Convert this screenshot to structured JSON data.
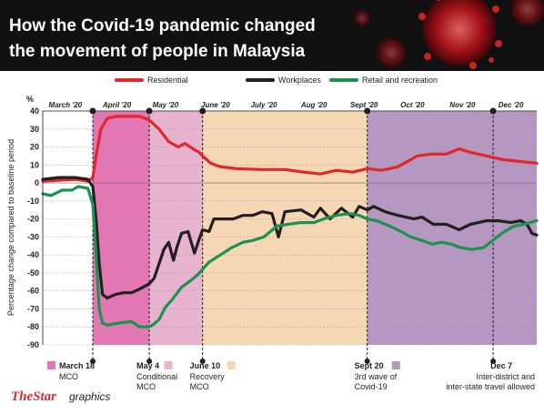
{
  "title_line1": "How the Covid-19 pandemic changed",
  "title_line2": "the movement of people in Malaysia",
  "credit_brand": "TheStar",
  "credit_suffix": "graphics",
  "chart_data": {
    "type": "line",
    "ylabel": "Percentage change compared to baseline period",
    "y_unit": "%",
    "ylim": [
      -90,
      40
    ],
    "yticks": [
      40,
      30,
      20,
      10,
      0,
      -10,
      -20,
      -30,
      -40,
      -50,
      -60,
      -70,
      -80,
      -90
    ],
    "xlim": [
      0,
      306
    ],
    "month_ticks": [
      {
        "label": "March '20",
        "x": 14
      },
      {
        "label": "April '20",
        "x": 46
      },
      {
        "label": "May '20",
        "x": 76
      },
      {
        "label": "June '20",
        "x": 107
      },
      {
        "label": "July '20",
        "x": 137
      },
      {
        "label": "Aug '20",
        "x": 168
      },
      {
        "label": "Sept '20",
        "x": 199
      },
      {
        "label": "Oct '20",
        "x": 229
      },
      {
        "label": "Nov '20",
        "x": 260
      },
      {
        "label": "Dec '20",
        "x": 290
      }
    ],
    "phases": [
      {
        "label": "March 18",
        "sublabel": "MCO",
        "start": 31,
        "end": 66,
        "color": "#e377b3"
      },
      {
        "label": "May 4",
        "sublabel": "Conditional MCO",
        "start": 66,
        "end": 99,
        "color": "#e8b3cf"
      },
      {
        "label": "June 10",
        "sublabel": "Recovery MCO",
        "start": 99,
        "end": 201,
        "color": "#f6d7b3"
      },
      {
        "label": "Sept 20",
        "sublabel": "3rd wave of Covid-19",
        "start": 201,
        "end": 306,
        "color": "#b597c1"
      }
    ],
    "event_lines": [
      {
        "label": "March 18",
        "x": 31
      },
      {
        "label": "May 4",
        "x": 66
      },
      {
        "label": "June 10",
        "x": 99
      },
      {
        "label": "Sept 20",
        "x": 201
      },
      {
        "label": "Dec 7",
        "x": 279
      }
    ],
    "annotations": [
      {
        "label": "Dec 7",
        "sublabel": "Inter-district and inter-state travel allowed",
        "x": 279
      }
    ],
    "series": [
      {
        "name": "Residential",
        "color": "#e1272c",
        "points": [
          [
            0,
            1
          ],
          [
            10,
            1.5
          ],
          [
            20,
            2
          ],
          [
            28,
            1
          ],
          [
            31,
            3
          ],
          [
            33,
            15
          ],
          [
            36,
            30
          ],
          [
            40,
            36
          ],
          [
            46,
            37
          ],
          [
            55,
            37
          ],
          [
            60,
            37
          ],
          [
            66,
            35
          ],
          [
            72,
            30
          ],
          [
            78,
            23
          ],
          [
            84,
            20
          ],
          [
            88,
            22
          ],
          [
            93,
            19
          ],
          [
            97,
            17
          ],
          [
            99,
            15
          ],
          [
            104,
            11
          ],
          [
            110,
            9
          ],
          [
            120,
            8
          ],
          [
            135,
            7.5
          ],
          [
            150,
            7.5
          ],
          [
            162,
            6
          ],
          [
            172,
            5
          ],
          [
            182,
            7
          ],
          [
            192,
            6
          ],
          [
            201,
            8
          ],
          [
            210,
            7
          ],
          [
            220,
            9
          ],
          [
            226,
            12
          ],
          [
            232,
            15
          ],
          [
            240,
            16
          ],
          [
            250,
            16
          ],
          [
            258,
            19
          ],
          [
            265,
            17
          ],
          [
            275,
            15
          ],
          [
            285,
            13
          ],
          [
            295,
            12
          ],
          [
            306,
            11
          ]
        ]
      },
      {
        "name": "Workplaces",
        "color": "#231f20",
        "points": [
          [
            0,
            2
          ],
          [
            10,
            3
          ],
          [
            20,
            3
          ],
          [
            28,
            2
          ],
          [
            31,
            -2
          ],
          [
            33,
            -20
          ],
          [
            35,
            -45
          ],
          [
            37,
            -62
          ],
          [
            40,
            -64
          ],
          [
            45,
            -62
          ],
          [
            50,
            -61
          ],
          [
            55,
            -61
          ],
          [
            60,
            -59
          ],
          [
            66,
            -56
          ],
          [
            69,
            -53
          ],
          [
            72,
            -45
          ],
          [
            75,
            -37
          ],
          [
            78,
            -33
          ],
          [
            81,
            -43
          ],
          [
            83,
            -36
          ],
          [
            86,
            -28
          ],
          [
            90,
            -27
          ],
          [
            94,
            -39
          ],
          [
            97,
            -31
          ],
          [
            99,
            -26
          ],
          [
            103,
            -27
          ],
          [
            106,
            -20
          ],
          [
            112,
            -20
          ],
          [
            118,
            -20
          ],
          [
            124,
            -18
          ],
          [
            130,
            -18
          ],
          [
            136,
            -16
          ],
          [
            142,
            -17
          ],
          [
            146,
            -30
          ],
          [
            150,
            -16
          ],
          [
            160,
            -15
          ],
          [
            168,
            -19
          ],
          [
            172,
            -14
          ],
          [
            178,
            -20
          ],
          [
            185,
            -14
          ],
          [
            192,
            -19
          ],
          [
            196,
            -13
          ],
          [
            201,
            -15
          ],
          [
            205,
            -13
          ],
          [
            212,
            -16
          ],
          [
            220,
            -18
          ],
          [
            230,
            -20
          ],
          [
            235,
            -19
          ],
          [
            242,
            -23
          ],
          [
            250,
            -23
          ],
          [
            258,
            -26
          ],
          [
            265,
            -23
          ],
          [
            275,
            -21
          ],
          [
            282,
            -21
          ],
          [
            290,
            -22
          ],
          [
            296,
            -21
          ],
          [
            300,
            -23
          ],
          [
            303,
            -28
          ],
          [
            306,
            -29
          ]
        ]
      },
      {
        "name": "Retail and recreation",
        "color": "#1b9350",
        "points": [
          [
            0,
            -6
          ],
          [
            5,
            -7
          ],
          [
            12,
            -4
          ],
          [
            18,
            -4
          ],
          [
            22,
            -2
          ],
          [
            28,
            -3
          ],
          [
            31,
            -12
          ],
          [
            33,
            -40
          ],
          [
            35,
            -70
          ],
          [
            37,
            -78
          ],
          [
            40,
            -79
          ],
          [
            46,
            -78
          ],
          [
            55,
            -77
          ],
          [
            60,
            -80
          ],
          [
            66,
            -80
          ],
          [
            68,
            -79
          ],
          [
            72,
            -76
          ],
          [
            76,
            -69
          ],
          [
            80,
            -65
          ],
          [
            86,
            -58
          ],
          [
            92,
            -54
          ],
          [
            96,
            -51
          ],
          [
            99,
            -48
          ],
          [
            103,
            -44
          ],
          [
            110,
            -40
          ],
          [
            117,
            -36
          ],
          [
            124,
            -33
          ],
          [
            130,
            -32
          ],
          [
            137,
            -30
          ],
          [
            145,
            -24
          ],
          [
            152,
            -23
          ],
          [
            160,
            -22
          ],
          [
            168,
            -22
          ],
          [
            174,
            -20
          ],
          [
            182,
            -18
          ],
          [
            190,
            -17
          ],
          [
            196,
            -18
          ],
          [
            201,
            -20
          ],
          [
            207,
            -21
          ],
          [
            215,
            -24
          ],
          [
            222,
            -27
          ],
          [
            228,
            -30
          ],
          [
            235,
            -32
          ],
          [
            241,
            -34
          ],
          [
            247,
            -33
          ],
          [
            253,
            -34
          ],
          [
            259,
            -36
          ],
          [
            266,
            -37
          ],
          [
            273,
            -36
          ],
          [
            280,
            -31
          ],
          [
            286,
            -27
          ],
          [
            292,
            -24
          ],
          [
            298,
            -23
          ],
          [
            306,
            -21
          ]
        ]
      }
    ]
  }
}
